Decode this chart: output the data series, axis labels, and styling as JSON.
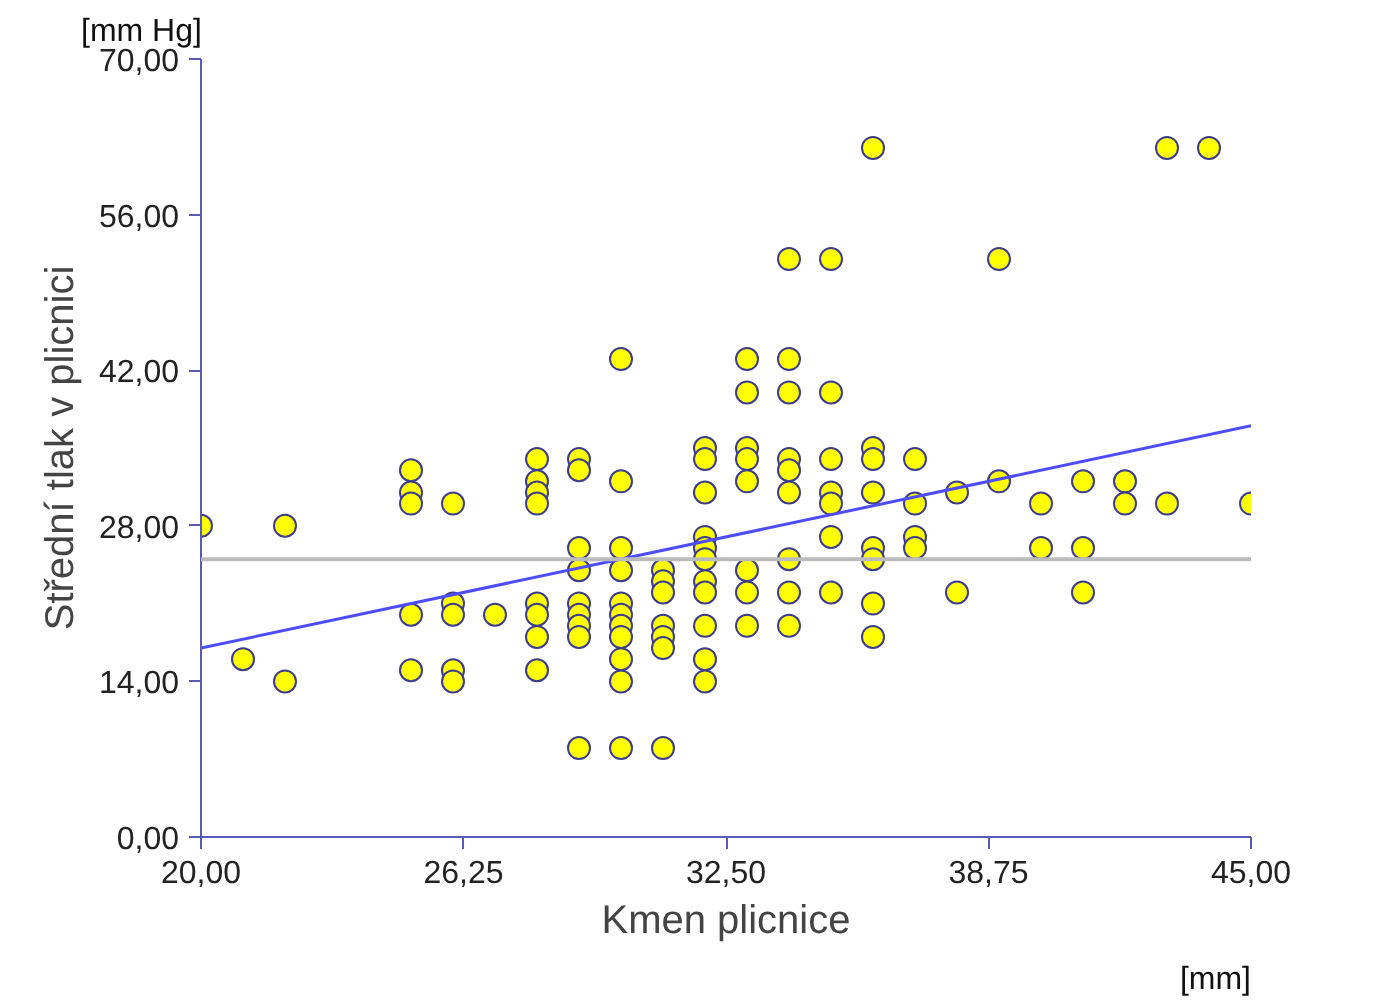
{
  "chart_data": {
    "type": "scatter",
    "xlabel": "Kmen plicnice",
    "ylabel": "Střední tlak v plicnici",
    "annotations": [
      "[mm Hg]",
      "[mm]"
    ],
    "xlim": [
      20,
      45
    ],
    "ylim": [
      0,
      70
    ],
    "xticks": [
      {
        "value": 20,
        "label": "20,00"
      },
      {
        "value": 26.25,
        "label": "26,25"
      },
      {
        "value": 32.5,
        "label": "32,50"
      },
      {
        "value": 38.75,
        "label": "38,75"
      },
      {
        "value": 45,
        "label": "45,00"
      }
    ],
    "yticks": [
      {
        "value": 0,
        "label": "0,00"
      },
      {
        "value": 14,
        "label": "14,00"
      },
      {
        "value": 28,
        "label": "28,00"
      },
      {
        "value": 42,
        "label": "42,00"
      },
      {
        "value": 56,
        "label": "56,00"
      },
      {
        "value": 70,
        "label": "70,00"
      }
    ],
    "grid": false,
    "ref_lines": [
      {
        "axis": "y",
        "value": 25,
        "label": null,
        "color": "#bbbbbb"
      }
    ],
    "series": [
      {
        "marker": "circle",
        "color": "#ffff00",
        "x": [
          20,
          21,
          22,
          22,
          25,
          25,
          25,
          25,
          25,
          26,
          26,
          26,
          26,
          26,
          27,
          28,
          28,
          28,
          28,
          28,
          28,
          28,
          28,
          29,
          29,
          29,
          29,
          29,
          29,
          29,
          29,
          29,
          30,
          30,
          30,
          30,
          30,
          30,
          30,
          30,
          30,
          30,
          30,
          31,
          31,
          31,
          31,
          31,
          31,
          31,
          32,
          32,
          32,
          32,
          32,
          32,
          32,
          32,
          32,
          32,
          32,
          33,
          33,
          33,
          33,
          33,
          33,
          33,
          33,
          34,
          34,
          34,
          34,
          34,
          34,
          34,
          34,
          34,
          35,
          35,
          35,
          35,
          35,
          35,
          35,
          36,
          36,
          36,
          36,
          36,
          36,
          36,
          36,
          37,
          37,
          37,
          37,
          38,
          38,
          39,
          39,
          40,
          40,
          41,
          41,
          41,
          42,
          42,
          43,
          43,
          44,
          45
        ],
        "values": [
          28,
          16,
          28,
          14,
          33,
          31,
          30,
          20,
          15,
          30,
          21,
          20,
          15,
          14,
          20,
          34,
          32,
          31,
          30,
          21,
          20,
          18,
          15,
          34,
          33,
          26,
          24,
          21,
          20,
          19,
          18,
          8,
          43,
          32,
          26,
          24,
          21,
          20,
          19,
          18,
          16,
          14,
          8,
          24,
          23,
          22,
          19,
          18,
          17,
          8,
          35,
          34,
          31,
          27,
          26,
          25,
          23,
          22,
          19,
          16,
          14,
          43,
          40,
          35,
          34,
          32,
          24,
          22,
          19,
          52,
          43,
          40,
          34,
          33,
          31,
          25,
          22,
          19,
          52,
          40,
          34,
          31,
          30,
          27,
          22,
          62,
          35,
          34,
          31,
          26,
          25,
          21,
          18,
          34,
          30,
          27,
          26,
          31,
          22,
          52,
          32,
          30,
          26,
          32,
          26,
          22,
          32,
          30,
          62,
          30,
          62,
          30
        ]
      },
      {
        "type": "line",
        "color": "#4d4dff",
        "x": [
          20,
          45
        ],
        "values": [
          17,
          37
        ]
      }
    ]
  }
}
